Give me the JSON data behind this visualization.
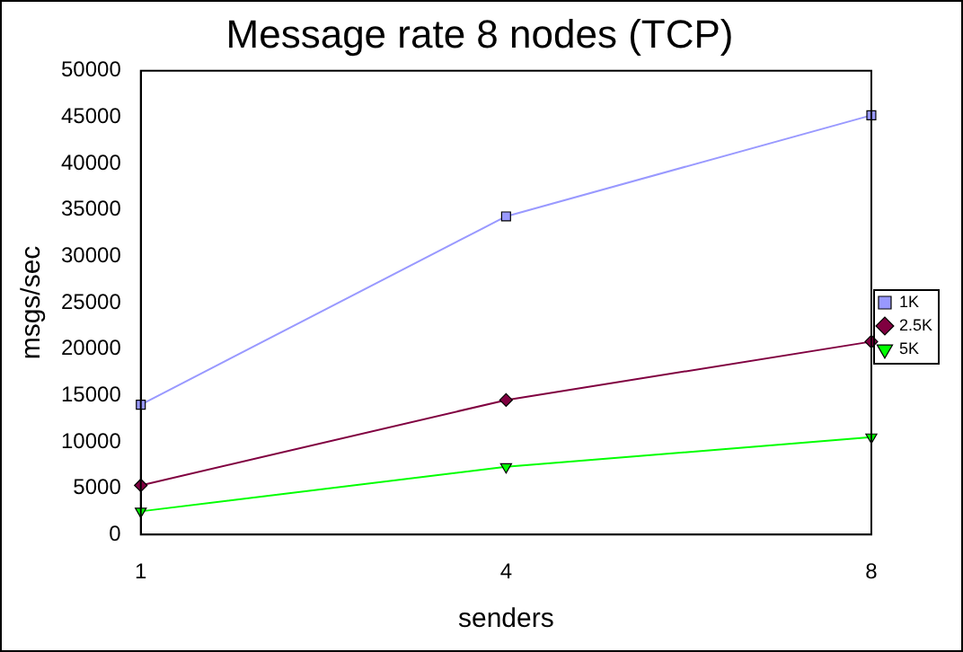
{
  "chart_data": {
    "type": "line",
    "title": "Message rate 8 nodes (TCP)",
    "xlabel": "senders",
    "ylabel": "msgs/sec",
    "categories": [
      "1",
      "4",
      "8"
    ],
    "series": [
      {
        "name": "1K",
        "color": "#9999ff",
        "marker": "square",
        "values": [
          14000,
          34300,
          45200
        ]
      },
      {
        "name": "2.5K",
        "color": "#800040",
        "marker": "diamond",
        "values": [
          5300,
          14500,
          20800
        ]
      },
      {
        "name": "5K",
        "color": "#00ff00",
        "marker": "triangle",
        "values": [
          2500,
          7300,
          10500
        ]
      }
    ],
    "ylim": [
      0,
      50000
    ],
    "yticks": [
      0,
      5000,
      10000,
      15000,
      20000,
      25000,
      30000,
      35000,
      40000,
      45000,
      50000
    ],
    "grid": false,
    "legend": "right"
  }
}
